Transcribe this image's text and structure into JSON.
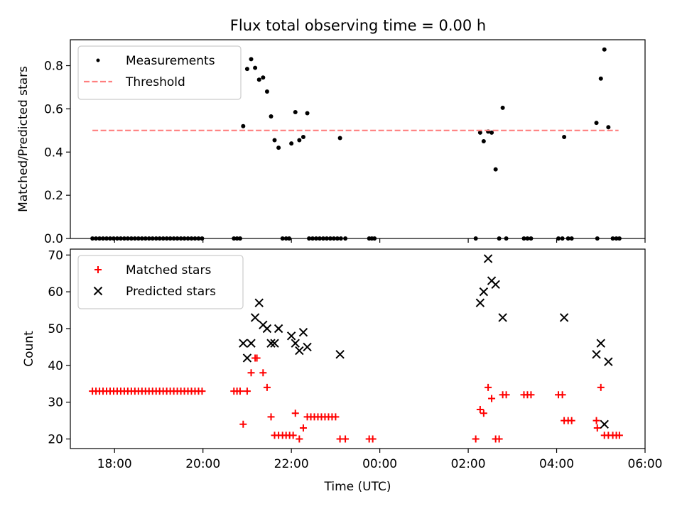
{
  "figure": {
    "title": "Flux total observing time = 0.00 h"
  },
  "chart_data": [
    {
      "type": "scatter",
      "ylabel": "Matched/Predicted stars",
      "xlabel": "",
      "xlim": [
        17.0,
        30.0
      ],
      "ylim": [
        0.0,
        0.92
      ],
      "yticks": [
        0.0,
        0.2,
        0.4,
        0.6,
        0.8
      ],
      "ytick_labels": [
        "0.0",
        "0.2",
        "0.4",
        "0.6",
        "0.8"
      ],
      "legend": "top-left",
      "series": [
        {
          "name": "Measurements",
          "marker": "dot",
          "color": "#000000",
          "points": [
            [
              17.5,
              0
            ],
            [
              17.58,
              0
            ],
            [
              17.66,
              0
            ],
            [
              17.74,
              0
            ],
            [
              17.82,
              0
            ],
            [
              17.9,
              0
            ],
            [
              17.98,
              0
            ],
            [
              18.06,
              0
            ],
            [
              18.14,
              0
            ],
            [
              18.22,
              0
            ],
            [
              18.3,
              0
            ],
            [
              18.38,
              0
            ],
            [
              18.46,
              0
            ],
            [
              18.54,
              0
            ],
            [
              18.62,
              0
            ],
            [
              18.7,
              0
            ],
            [
              18.78,
              0
            ],
            [
              18.86,
              0
            ],
            [
              18.94,
              0
            ],
            [
              19.02,
              0
            ],
            [
              19.1,
              0
            ],
            [
              19.18,
              0
            ],
            [
              19.26,
              0
            ],
            [
              19.34,
              0
            ],
            [
              19.42,
              0
            ],
            [
              19.5,
              0
            ],
            [
              19.58,
              0
            ],
            [
              19.66,
              0
            ],
            [
              19.74,
              0
            ],
            [
              19.82,
              0
            ],
            [
              19.9,
              0
            ],
            [
              19.98,
              0
            ],
            [
              20.7,
              0
            ],
            [
              20.77,
              0
            ],
            [
              20.84,
              0
            ],
            [
              20.91,
              0.52
            ],
            [
              21.0,
              0.785
            ],
            [
              21.09,
              0.83
            ],
            [
              21.18,
              0.79
            ],
            [
              21.27,
              0.735
            ],
            [
              21.36,
              0.745
            ],
            [
              21.45,
              0.68
            ],
            [
              21.54,
              0.565
            ],
            [
              21.62,
              0.455
            ],
            [
              21.71,
              0.42
            ],
            [
              21.8,
              0
            ],
            [
              21.88,
              0
            ],
            [
              21.95,
              0
            ],
            [
              22.0,
              0.44
            ],
            [
              22.09,
              0.585
            ],
            [
              22.18,
              0.455
            ],
            [
              22.27,
              0.47
            ],
            [
              22.36,
              0.58
            ],
            [
              22.4,
              0
            ],
            [
              22.48,
              0
            ],
            [
              22.56,
              0
            ],
            [
              22.64,
              0
            ],
            [
              22.72,
              0
            ],
            [
              22.8,
              0
            ],
            [
              22.88,
              0
            ],
            [
              22.96,
              0
            ],
            [
              23.04,
              0
            ],
            [
              23.12,
              0
            ],
            [
              23.1,
              0.465
            ],
            [
              23.22,
              0
            ],
            [
              23.76,
              0
            ],
            [
              23.82,
              0
            ],
            [
              23.88,
              0
            ],
            [
              26.17,
              0
            ],
            [
              26.27,
              0.49
            ],
            [
              26.35,
              0.45
            ],
            [
              26.45,
              0.495
            ],
            [
              26.53,
              0.49
            ],
            [
              26.62,
              0.32
            ],
            [
              26.78,
              0.605
            ],
            [
              26.7,
              0
            ],
            [
              26.86,
              0
            ],
            [
              27.26,
              0
            ],
            [
              27.34,
              0
            ],
            [
              27.42,
              0
            ],
            [
              28.04,
              0
            ],
            [
              28.13,
              0
            ],
            [
              28.17,
              0.47
            ],
            [
              28.26,
              0
            ],
            [
              28.34,
              0
            ],
            [
              28.92,
              0
            ],
            [
              28.9,
              0.535
            ],
            [
              29.0,
              0.74
            ],
            [
              29.08,
              0.875
            ],
            [
              29.17,
              0.515
            ],
            [
              29.27,
              0
            ],
            [
              29.35,
              0
            ],
            [
              29.42,
              0
            ]
          ]
        },
        {
          "name": "Threshold",
          "marker": "dashed-line",
          "color": "#ff7f7f",
          "points": [
            [
              17.5,
              0.5
            ],
            [
              29.4,
              0.5
            ]
          ]
        }
      ]
    },
    {
      "type": "scatter",
      "ylabel": "Count",
      "xlabel": "Time (UTC)",
      "xlim": [
        17.0,
        30.0
      ],
      "ylim": [
        17.4,
        71.6
      ],
      "yticks": [
        20,
        30,
        40,
        50,
        60,
        70
      ],
      "ytick_labels": [
        "20",
        "30",
        "40",
        "50",
        "60",
        "70"
      ],
      "xticks": [
        18,
        20,
        22,
        24,
        26,
        28,
        30
      ],
      "xtick_labels": [
        "18:00",
        "20:00",
        "22:00",
        "00:00",
        "02:00",
        "04:00",
        "06:00"
      ],
      "legend": "top-left",
      "series": [
        {
          "name": "Matched stars",
          "marker": "plus",
          "color": "#ff0000",
          "points": [
            [
              17.5,
              33
            ],
            [
              17.58,
              33
            ],
            [
              17.66,
              33
            ],
            [
              17.74,
              33
            ],
            [
              17.82,
              33
            ],
            [
              17.9,
              33
            ],
            [
              17.98,
              33
            ],
            [
              18.06,
              33
            ],
            [
              18.14,
              33
            ],
            [
              18.22,
              33
            ],
            [
              18.3,
              33
            ],
            [
              18.38,
              33
            ],
            [
              18.46,
              33
            ],
            [
              18.54,
              33
            ],
            [
              18.62,
              33
            ],
            [
              18.7,
              33
            ],
            [
              18.78,
              33
            ],
            [
              18.86,
              33
            ],
            [
              18.94,
              33
            ],
            [
              19.02,
              33
            ],
            [
              19.1,
              33
            ],
            [
              19.18,
              33
            ],
            [
              19.26,
              33
            ],
            [
              19.34,
              33
            ],
            [
              19.42,
              33
            ],
            [
              19.5,
              33
            ],
            [
              19.58,
              33
            ],
            [
              19.66,
              33
            ],
            [
              19.74,
              33
            ],
            [
              19.82,
              33
            ],
            [
              19.9,
              33
            ],
            [
              19.98,
              33
            ],
            [
              20.7,
              33
            ],
            [
              20.77,
              33
            ],
            [
              20.84,
              33
            ],
            [
              20.91,
              24
            ],
            [
              21.0,
              33
            ],
            [
              21.09,
              38
            ],
            [
              21.18,
              42
            ],
            [
              21.22,
              42
            ],
            [
              21.36,
              38
            ],
            [
              21.45,
              34
            ],
            [
              21.54,
              26
            ],
            [
              21.62,
              21
            ],
            [
              21.71,
              21
            ],
            [
              21.8,
              21
            ],
            [
              21.88,
              21
            ],
            [
              21.96,
              21
            ],
            [
              22.04,
              21
            ],
            [
              22.09,
              27
            ],
            [
              22.18,
              20
            ],
            [
              22.27,
              23
            ],
            [
              22.36,
              26
            ],
            [
              22.44,
              26
            ],
            [
              22.52,
              26
            ],
            [
              22.6,
              26
            ],
            [
              22.68,
              26
            ],
            [
              22.76,
              26
            ],
            [
              22.84,
              26
            ],
            [
              22.92,
              26
            ],
            [
              23.0,
              26
            ],
            [
              23.1,
              20
            ],
            [
              23.22,
              20
            ],
            [
              23.76,
              20
            ],
            [
              23.84,
              20
            ],
            [
              26.17,
              20
            ],
            [
              26.27,
              28
            ],
            [
              26.35,
              27
            ],
            [
              26.45,
              34
            ],
            [
              26.53,
              31
            ],
            [
              26.62,
              20
            ],
            [
              26.7,
              20
            ],
            [
              26.78,
              32
            ],
            [
              26.86,
              32
            ],
            [
              27.26,
              32
            ],
            [
              27.34,
              32
            ],
            [
              27.42,
              32
            ],
            [
              28.04,
              32
            ],
            [
              28.13,
              32
            ],
            [
              28.17,
              25
            ],
            [
              28.26,
              25
            ],
            [
              28.34,
              25
            ],
            [
              28.9,
              25
            ],
            [
              28.92,
              23
            ],
            [
              29.0,
              34
            ],
            [
              29.08,
              21
            ],
            [
              29.17,
              21
            ],
            [
              29.27,
              21
            ],
            [
              29.35,
              21
            ],
            [
              29.42,
              21
            ]
          ]
        },
        {
          "name": "Predicted stars",
          "marker": "x",
          "color": "#000000",
          "points": [
            [
              20.91,
              46
            ],
            [
              21.0,
              42
            ],
            [
              21.09,
              46
            ],
            [
              21.18,
              53
            ],
            [
              21.27,
              57
            ],
            [
              21.36,
              51
            ],
            [
              21.45,
              50
            ],
            [
              21.54,
              46
            ],
            [
              21.62,
              46
            ],
            [
              21.71,
              50
            ],
            [
              22.0,
              48
            ],
            [
              22.09,
              46
            ],
            [
              22.18,
              44
            ],
            [
              22.27,
              49
            ],
            [
              22.36,
              45
            ],
            [
              23.1,
              43
            ],
            [
              26.27,
              57
            ],
            [
              26.35,
              60
            ],
            [
              26.45,
              69
            ],
            [
              26.53,
              63
            ],
            [
              26.62,
              62
            ],
            [
              26.78,
              53
            ],
            [
              28.17,
              53
            ],
            [
              28.9,
              43
            ],
            [
              29.0,
              46
            ],
            [
              29.08,
              24
            ],
            [
              29.17,
              41
            ]
          ]
        }
      ]
    }
  ]
}
